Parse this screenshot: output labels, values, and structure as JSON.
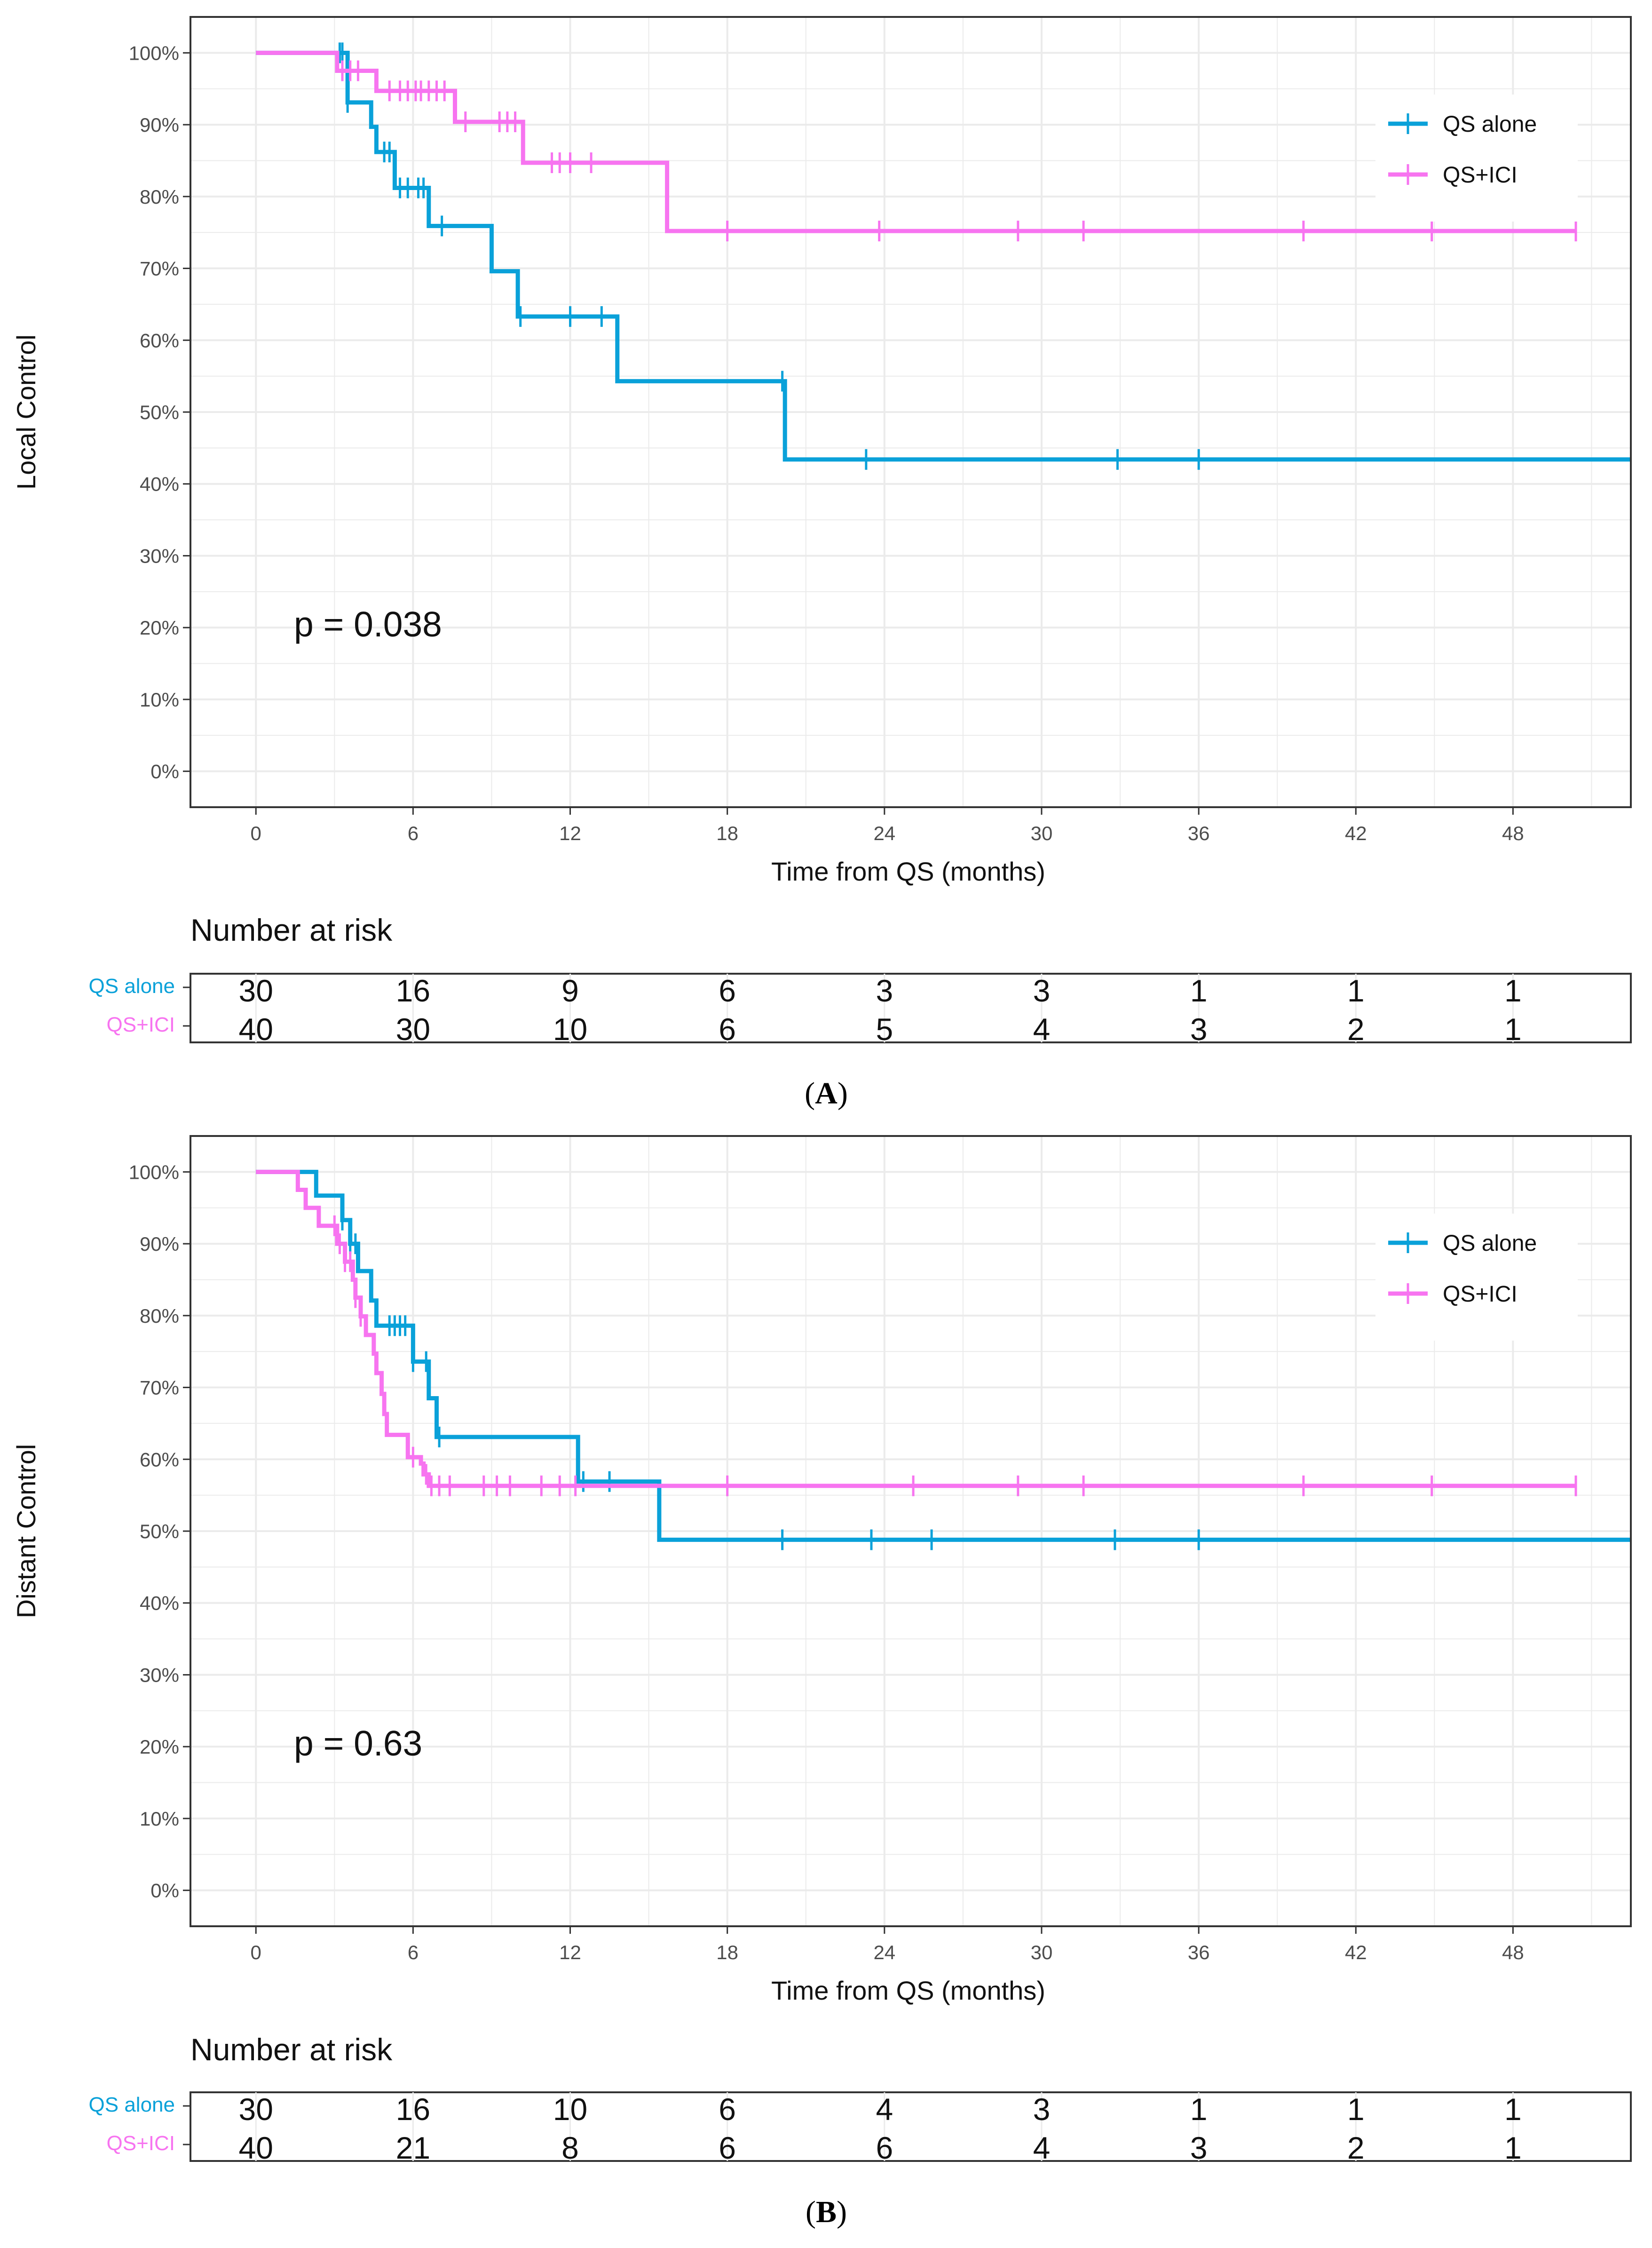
{
  "chart_data": [
    {
      "type": "line",
      "panel_label": "A",
      "ylabel": "Local Control",
      "xlabel": "Time from QS (months)",
      "xticks": [
        "0",
        "6",
        "12",
        "18",
        "24",
        "30",
        "36",
        "42",
        "48"
      ],
      "yticks": [
        "0%",
        "10%",
        "20%",
        "30%",
        "40%",
        "50%",
        "60%",
        "70%",
        "80%",
        "90%",
        "100%"
      ],
      "xlim": [
        -2.5,
        52.5
      ],
      "ylim": [
        -0.05,
        1.05
      ],
      "p_value_text": "p = 0.038",
      "legend": [
        "QS alone",
        "QS+ICI"
      ],
      "colors": {
        "qs_alone": "#0aa1d9",
        "qs_ici": "#f774f0"
      },
      "series": [
        {
          "name": "QS alone",
          "steps": [
            [
              0,
              1.0
            ],
            [
              3.5,
              0.931
            ],
            [
              4.4,
              0.897
            ],
            [
              4.6,
              0.862
            ],
            [
              5.3,
              0.812
            ],
            [
              6.6,
              0.759
            ],
            [
              9.0,
              0.696
            ],
            [
              10.0,
              0.633
            ],
            [
              13.8,
              0.543
            ],
            [
              20.2,
              0.434
            ],
            [
              52.5,
              0.434
            ]
          ],
          "censor_times": [
            3.2,
            3.3,
            3.5,
            4.9,
            5.1,
            5.5,
            5.8,
            6.2,
            6.4,
            7.1,
            10.1,
            12.0,
            13.2,
            20.1,
            23.3,
            32.9,
            36.0
          ]
        },
        {
          "name": "QS+ICI",
          "steps": [
            [
              0,
              1.0
            ],
            [
              3.1,
              0.975
            ],
            [
              4.6,
              0.947
            ],
            [
              7.6,
              0.904
            ],
            [
              10.2,
              0.847
            ],
            [
              15.7,
              0.752
            ],
            [
              50.4,
              0.752
            ]
          ],
          "censor_times": [
            3.3,
            3.6,
            3.9,
            5.1,
            5.5,
            5.8,
            6.1,
            6.3,
            6.6,
            6.9,
            7.2,
            8.0,
            9.3,
            9.6,
            9.9,
            11.3,
            11.6,
            12.0,
            12.8,
            18.0,
            23.8,
            29.1,
            31.6,
            40.0,
            44.9,
            50.4
          ]
        }
      ],
      "risk_table": {
        "title": "Number at risk",
        "rows": [
          {
            "label": "QS alone",
            "counts": [
              "30",
              "16",
              "9",
              "6",
              "3",
              "3",
              "1",
              "1",
              "1"
            ]
          },
          {
            "label": "QS+ICI",
            "counts": [
              "40",
              "30",
              "10",
              "6",
              "5",
              "4",
              "3",
              "2",
              "1"
            ]
          }
        ]
      }
    },
    {
      "type": "line",
      "panel_label": "B",
      "ylabel": "Distant Control",
      "xlabel": "Time from QS (months)",
      "xticks": [
        "0",
        "6",
        "12",
        "18",
        "24",
        "30",
        "36",
        "42",
        "48"
      ],
      "yticks": [
        "0%",
        "10%",
        "20%",
        "30%",
        "40%",
        "50%",
        "60%",
        "70%",
        "80%",
        "90%",
        "100%"
      ],
      "xlim": [
        -2.5,
        52.5
      ],
      "ylim": [
        -0.05,
        1.05
      ],
      "p_value_text": "p = 0.63",
      "legend": [
        "QS alone",
        "QS+ICI"
      ],
      "colors": {
        "qs_alone": "#0aa1d9",
        "qs_ici": "#f774f0"
      },
      "series": [
        {
          "name": "QS alone",
          "steps": [
            [
              0,
              1.0
            ],
            [
              2.3,
              0.967
            ],
            [
              3.3,
              0.933
            ],
            [
              3.6,
              0.9
            ],
            [
              3.9,
              0.862
            ],
            [
              4.4,
              0.821
            ],
            [
              4.6,
              0.786
            ],
            [
              6.0,
              0.736
            ],
            [
              6.6,
              0.685
            ],
            [
              6.9,
              0.631
            ],
            [
              12.3,
              0.569
            ],
            [
              15.4,
              0.488
            ],
            [
              52.5,
              0.488
            ]
          ],
          "censor_times": [
            3.3,
            3.6,
            3.8,
            5.1,
            5.3,
            5.5,
            5.7,
            6.0,
            6.5,
            7.0,
            12.5,
            13.5,
            20.1,
            23.5,
            25.8,
            32.8,
            36.0
          ]
        },
        {
          "name": "QS+ICI",
          "steps": [
            [
              0,
              1.0
            ],
            [
              1.6,
              0.975
            ],
            [
              1.9,
              0.95
            ],
            [
              2.4,
              0.925
            ],
            [
              3.1,
              0.9
            ],
            [
              3.4,
              0.875
            ],
            [
              3.7,
              0.85
            ],
            [
              3.8,
              0.825
            ],
            [
              4.0,
              0.799
            ],
            [
              4.2,
              0.773
            ],
            [
              4.5,
              0.747
            ],
            [
              4.6,
              0.72
            ],
            [
              4.8,
              0.691
            ],
            [
              4.9,
              0.663
            ],
            [
              5.0,
              0.634
            ],
            [
              5.8,
              0.603
            ],
            [
              6.3,
              0.594
            ],
            [
              6.4,
              0.579
            ],
            [
              6.6,
              0.563
            ],
            [
              50.4,
              0.563
            ]
          ],
          "censor_times": [
            3.0,
            3.2,
            3.4,
            3.6,
            3.8,
            4.0,
            6.0,
            6.5,
            6.7,
            7.0,
            7.4,
            8.7,
            9.2,
            9.7,
            10.9,
            11.6,
            12.2,
            18.0,
            25.1,
            29.1,
            31.6,
            40.0,
            44.9,
            50.4
          ]
        }
      ],
      "risk_table": {
        "title": "Number at risk",
        "rows": [
          {
            "label": "QS alone",
            "counts": [
              "30",
              "16",
              "10",
              "6",
              "4",
              "3",
              "1",
              "1",
              "1"
            ]
          },
          {
            "label": "QS+ICI",
            "counts": [
              "40",
              "21",
              "8",
              "6",
              "6",
              "4",
              "3",
              "2",
              "1"
            ]
          }
        ]
      }
    }
  ]
}
